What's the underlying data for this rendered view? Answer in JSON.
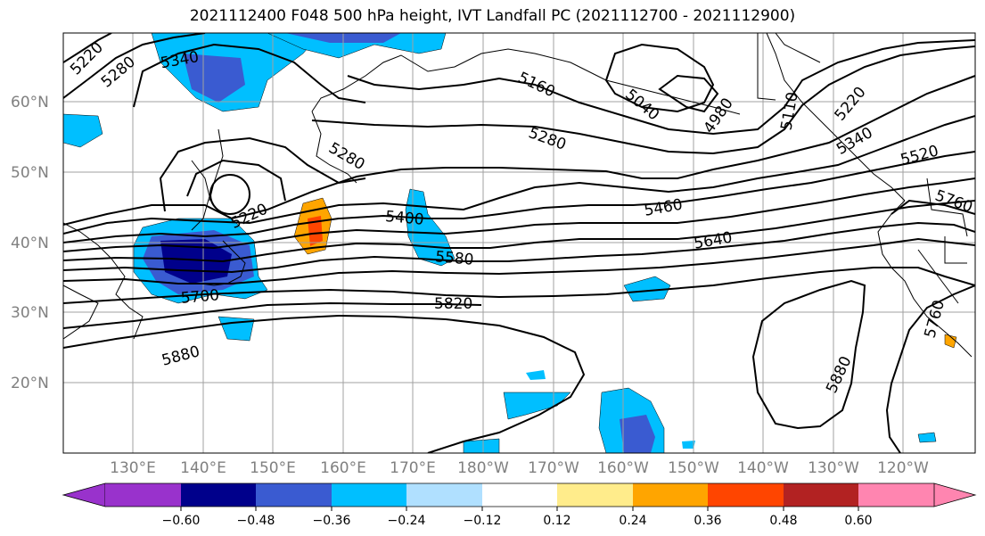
{
  "title": "2021112400 F048 500 hPa height, IVT Landfall PC (2021112700 - 2021112900)",
  "lat_labels": [
    "60°N",
    "50°N",
    "40°N",
    "30°N",
    "20°N"
  ],
  "lon_labels": [
    "130°E",
    "140°E",
    "150°E",
    "160°E",
    "170°E",
    "180°W",
    "170°W",
    "160°W",
    "150°W",
    "140°W",
    "130°W",
    "120°W"
  ],
  "contour_labels": [
    "5220",
    "5280",
    "5340",
    "5160",
    "5040",
    "4980",
    "5110",
    "5220",
    "5340",
    "5520",
    "5280",
    "5280",
    "5220",
    "5460",
    "5400",
    "5640",
    "5580",
    "5760",
    "5700",
    "5820",
    "5880",
    "5760",
    "5880"
  ],
  "colorbar": {
    "ticks": [
      "−0.60",
      "−0.48",
      "−0.36",
      "−0.24",
      "−0.12",
      "0.12",
      "0.24",
      "0.36",
      "0.48",
      "0.60"
    ],
    "colors": [
      "#9932cc",
      "#00008b",
      "#3a5bd1",
      "#00bfff",
      "#b0e0ff",
      "#ffffff",
      "#ffec8b",
      "#ffa500",
      "#ff4500",
      "#b22222",
      "#ff85b0"
    ]
  }
}
